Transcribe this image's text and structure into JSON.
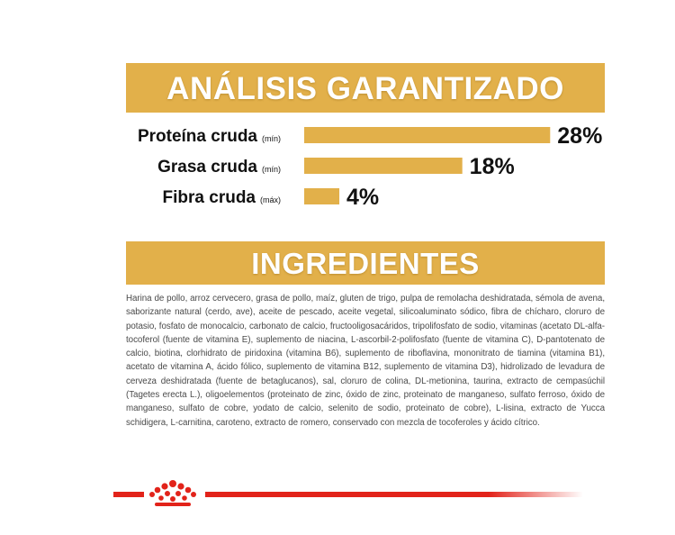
{
  "analysis": {
    "type": "bar",
    "title": "ANÁLISIS GARANTIZADO",
    "categories": [
      "Proteína cruda",
      "Grasa cruda",
      "Fibra cruda"
    ],
    "qualifiers": [
      "(mín)",
      "(mín)",
      "(máx)"
    ],
    "values": [
      28,
      18,
      4
    ],
    "value_labels": [
      "28%",
      "18%",
      "4%"
    ],
    "color": "#e2b04a"
  },
  "ingredients": {
    "title": "INGREDIENTES",
    "text": "Harina de pollo, arroz cervecero, grasa de pollo, maíz, gluten de trigo, pulpa de remolacha deshidratada, sémola de avena, saborizante natural (cerdo, ave), aceite de pescado, aceite vegetal, silicoaluminato sódico, fibra de chícharo, cloruro de potasio, fosfato de monocalcio, carbonato de calcio, fructooligosacáridos, tripolifosfato de sodio, vitaminas (acetato DL-alfa-tocoferol (fuente de vitamina E), suplemento de niacina, L-ascorbil-2-polifosfato (fuente de vitamina C), D-pantotenato de calcio, biotina, clorhidrato de piridoxina (vitamina B6), suplemento de riboflavina, mononitrato de tiamina (vitamina B1), acetato de vitamina A, ácido fólico, suplemento de vitamina B12, suplemento de vitamina D3), hidrolizado de levadura de cerveza deshidratada (fuente de betaglucanos), sal, cloruro de colina, DL-metionina, taurina, extracto de cempasúchil (Tagetes erecta L.), oligoelementos (proteinato de zinc, óxido de zinc, proteinato de manganeso, sulfato ferroso, óxido de manganeso, sulfato de cobre, yodato de calcio, selenito de sodio, proteinato de cobre), L-lisina, extracto de Yucca schidigera, L-carnitina, caroteno, extracto de romero, conservado con mezcla de tocoferoles y ácido cítrico."
  }
}
